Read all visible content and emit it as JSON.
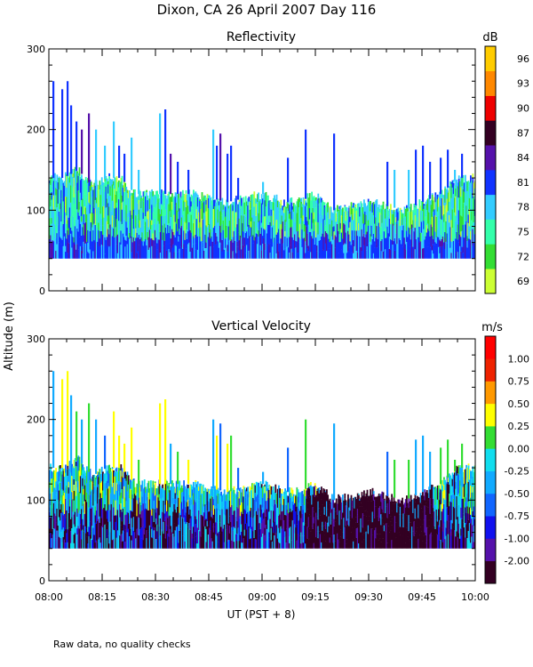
{
  "figure": {
    "title": "Dixon, CA 26 April 2007  Day 116",
    "ylabel": "Altitude (m)",
    "xlabel": "UT  (PST + 8)",
    "footnote": "Raw data, no quality checks"
  },
  "chart_data": [
    {
      "type": "heatmap",
      "title": "Reflectivity",
      "xlabel": "UT  (PST + 8)",
      "ylabel": "Altitude (m)",
      "x_range": [
        "08:00",
        "10:00"
      ],
      "x_ticks": [
        "08:00",
        "08:15",
        "08:30",
        "08:45",
        "09:00",
        "09:15",
        "09:30",
        "09:45",
        "10:00"
      ],
      "ylim": [
        0,
        300
      ],
      "y_ticks": [
        0,
        100,
        200,
        300
      ],
      "data_floor_m": 40,
      "colorbar": {
        "unit": "dB",
        "labels": [
          "69",
          "72",
          "75",
          "78",
          "81",
          "84",
          "87",
          "90",
          "93",
          "96"
        ],
        "colors": [
          "#ccff33",
          "#33dd33",
          "#33ffaa",
          "#33ccff",
          "#1133ff",
          "#5511aa",
          "#330022",
          "#ee0000",
          "#ff8800",
          "#ffcc00"
        ]
      },
      "palette_indices": [
        0,
        1,
        2,
        3,
        4,
        5
      ],
      "echo_top_profile_m": [
        [
          0,
          140
        ],
        [
          4,
          140
        ],
        [
          8,
          150
        ],
        [
          12,
          130
        ],
        [
          16,
          140
        ],
        [
          20,
          140
        ],
        [
          24,
          120
        ],
        [
          30,
          120
        ],
        [
          40,
          120
        ],
        [
          50,
          110
        ],
        [
          60,
          120
        ],
        [
          66,
          110
        ],
        [
          70,
          110
        ],
        [
          75,
          120
        ],
        [
          80,
          100
        ],
        [
          90,
          110
        ],
        [
          100,
          100
        ],
        [
          105,
          110
        ],
        [
          110,
          120
        ],
        [
          115,
          140
        ],
        [
          120,
          140
        ]
      ],
      "echo_spikes": [
        {
          "time_min": 1.0,
          "top_m": 260
        },
        {
          "time_min": 3.5,
          "top_m": 250
        },
        {
          "time_min": 5.0,
          "top_m": 260
        },
        {
          "time_min": 6.0,
          "top_m": 230
        },
        {
          "time_min": 7.5,
          "top_m": 210
        },
        {
          "time_min": 9.0,
          "top_m": 200
        },
        {
          "time_min": 11.0,
          "top_m": 220
        },
        {
          "time_min": 13.0,
          "top_m": 200
        },
        {
          "time_min": 15.5,
          "top_m": 180
        },
        {
          "time_min": 18.0,
          "top_m": 210
        },
        {
          "time_min": 19.5,
          "top_m": 180
        },
        {
          "time_min": 21.0,
          "top_m": 170
        },
        {
          "time_min": 23.0,
          "top_m": 190
        },
        {
          "time_min": 25.0,
          "top_m": 150
        },
        {
          "time_min": 31.0,
          "top_m": 220
        },
        {
          "time_min": 32.5,
          "top_m": 225
        },
        {
          "time_min": 34.0,
          "top_m": 170
        },
        {
          "time_min": 36.0,
          "top_m": 160
        },
        {
          "time_min": 39.0,
          "top_m": 150
        },
        {
          "time_min": 46.0,
          "top_m": 200
        },
        {
          "time_min": 47.0,
          "top_m": 180
        },
        {
          "time_min": 48.0,
          "top_m": 195
        },
        {
          "time_min": 50.0,
          "top_m": 170
        },
        {
          "time_min": 51.0,
          "top_m": 180
        },
        {
          "time_min": 53.0,
          "top_m": 140
        },
        {
          "time_min": 60.0,
          "top_m": 135
        },
        {
          "time_min": 67.0,
          "top_m": 165
        },
        {
          "time_min": 72.0,
          "top_m": 200
        },
        {
          "time_min": 80.0,
          "top_m": 195
        },
        {
          "time_min": 95.0,
          "top_m": 160
        },
        {
          "time_min": 97.0,
          "top_m": 150
        },
        {
          "time_min": 101.0,
          "top_m": 150
        },
        {
          "time_min": 103.0,
          "top_m": 175
        },
        {
          "time_min": 105.0,
          "top_m": 180
        },
        {
          "time_min": 107.0,
          "top_m": 160
        },
        {
          "time_min": 110.0,
          "top_m": 165
        },
        {
          "time_min": 112.0,
          "top_m": 175
        },
        {
          "time_min": 114.0,
          "top_m": 150
        },
        {
          "time_min": 116.0,
          "top_m": 170
        }
      ]
    },
    {
      "type": "heatmap",
      "title": "Vertical Velocity",
      "xlabel": "UT  (PST + 8)",
      "ylabel": "Altitude (m)",
      "x_range": [
        "08:00",
        "10:00"
      ],
      "x_ticks": [
        "08:00",
        "08:15",
        "08:30",
        "08:45",
        "09:00",
        "09:15",
        "09:30",
        "09:45",
        "10:00"
      ],
      "ylim": [
        0,
        300
      ],
      "y_ticks": [
        0,
        100,
        200,
        300
      ],
      "data_floor_m": 40,
      "colorbar": {
        "unit": "m/s",
        "labels": [
          "-2.00",
          "-1.00",
          "-0.75",
          "-0.50",
          "-0.25",
          "0.00",
          "0.25",
          "0.50",
          "0.75",
          "1.00"
        ],
        "colors": [
          "#330022",
          "#5511aa",
          "#1111ee",
          "#1166ff",
          "#11aaff",
          "#11ddee",
          "#33dd33",
          "#ffff00",
          "#ff9900",
          "#ee2200",
          "#ff0000"
        ]
      },
      "palette_indices": [
        0,
        1,
        2,
        3,
        4,
        5,
        6,
        7
      ],
      "dark_period_min": [
        72,
        108
      ],
      "echo_top_profile_m": [
        [
          0,
          140
        ],
        [
          4,
          140
        ],
        [
          8,
          150
        ],
        [
          12,
          130
        ],
        [
          16,
          140
        ],
        [
          20,
          140
        ],
        [
          24,
          120
        ],
        [
          30,
          120
        ],
        [
          40,
          120
        ],
        [
          50,
          110
        ],
        [
          60,
          120
        ],
        [
          66,
          110
        ],
        [
          70,
          110
        ],
        [
          75,
          120
        ],
        [
          80,
          100
        ],
        [
          90,
          110
        ],
        [
          100,
          100
        ],
        [
          105,
          110
        ],
        [
          110,
          120
        ],
        [
          115,
          140
        ],
        [
          120,
          140
        ]
      ],
      "echo_spikes": [
        {
          "time_min": 1.0,
          "top_m": 260
        },
        {
          "time_min": 3.5,
          "top_m": 250
        },
        {
          "time_min": 5.0,
          "top_m": 260
        },
        {
          "time_min": 6.0,
          "top_m": 230
        },
        {
          "time_min": 7.5,
          "top_m": 210
        },
        {
          "time_min": 9.0,
          "top_m": 200
        },
        {
          "time_min": 11.0,
          "top_m": 220
        },
        {
          "time_min": 13.0,
          "top_m": 200
        },
        {
          "time_min": 15.5,
          "top_m": 180
        },
        {
          "time_min": 18.0,
          "top_m": 210
        },
        {
          "time_min": 19.5,
          "top_m": 180
        },
        {
          "time_min": 21.0,
          "top_m": 170
        },
        {
          "time_min": 23.0,
          "top_m": 190
        },
        {
          "time_min": 25.0,
          "top_m": 150
        },
        {
          "time_min": 31.0,
          "top_m": 220
        },
        {
          "time_min": 32.5,
          "top_m": 225
        },
        {
          "time_min": 34.0,
          "top_m": 170
        },
        {
          "time_min": 36.0,
          "top_m": 160
        },
        {
          "time_min": 39.0,
          "top_m": 150
        },
        {
          "time_min": 46.0,
          "top_m": 200
        },
        {
          "time_min": 47.0,
          "top_m": 180
        },
        {
          "time_min": 48.0,
          "top_m": 195
        },
        {
          "time_min": 50.0,
          "top_m": 170
        },
        {
          "time_min": 51.0,
          "top_m": 180
        },
        {
          "time_min": 53.0,
          "top_m": 140
        },
        {
          "time_min": 60.0,
          "top_m": 135
        },
        {
          "time_min": 67.0,
          "top_m": 165
        },
        {
          "time_min": 72.0,
          "top_m": 200
        },
        {
          "time_min": 80.0,
          "top_m": 195
        },
        {
          "time_min": 95.0,
          "top_m": 160
        },
        {
          "time_min": 97.0,
          "top_m": 150
        },
        {
          "time_min": 101.0,
          "top_m": 150
        },
        {
          "time_min": 103.0,
          "top_m": 175
        },
        {
          "time_min": 105.0,
          "top_m": 180
        },
        {
          "time_min": 107.0,
          "top_m": 160
        },
        {
          "time_min": 110.0,
          "top_m": 165
        },
        {
          "time_min": 112.0,
          "top_m": 175
        },
        {
          "time_min": 114.0,
          "top_m": 150
        },
        {
          "time_min": 116.0,
          "top_m": 170
        }
      ]
    }
  ]
}
